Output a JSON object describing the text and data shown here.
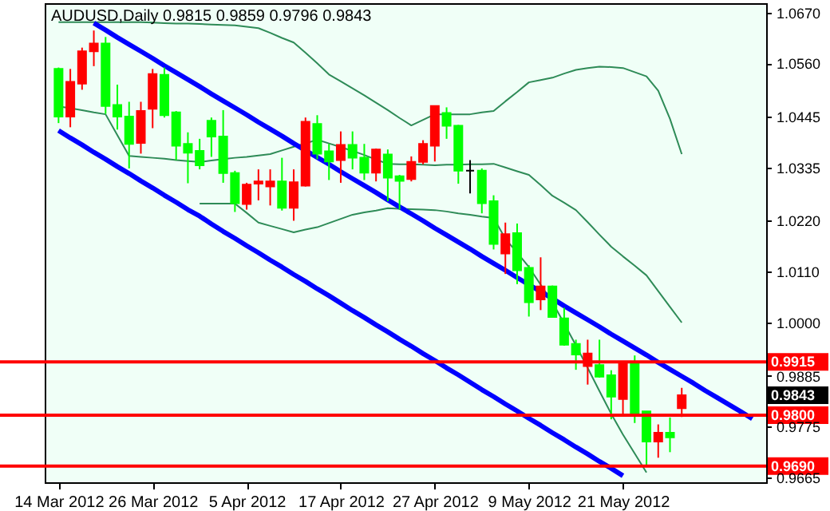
{
  "chart_data": {
    "type": "candlestick",
    "title": "AUDUSD,Daily 0.9815 0.9859 0.9796 0.9843",
    "categories": [
      "14 Mar 2012",
      null,
      null,
      null,
      null,
      null,
      null,
      null,
      "26 Mar 2012",
      null,
      null,
      null,
      null,
      null,
      null,
      null,
      "5 Apr 2012",
      null,
      null,
      null,
      null,
      null,
      null,
      null,
      "17 Apr 2012",
      null,
      null,
      null,
      null,
      null,
      null,
      null,
      "27 Apr 2012",
      null,
      null,
      null,
      null,
      null,
      null,
      null,
      "9 May 2012",
      null,
      null,
      null,
      null,
      null,
      null,
      null,
      "21 May 2012",
      null,
      null,
      null,
      null,
      null,
      null,
      null,
      null,
      null,
      null,
      null
    ],
    "ohlc": [
      [
        1.0548,
        1.0551,
        1.0431,
        1.0445
      ],
      [
        1.0445,
        1.0548,
        1.0422,
        1.052
      ],
      [
        1.0516,
        1.0594,
        1.0503,
        1.0586
      ],
      [
        1.0586,
        1.0631,
        1.0554,
        1.0603
      ],
      [
        1.0603,
        1.0617,
        1.0451,
        1.0468
      ],
      [
        1.047,
        1.0514,
        1.0417,
        1.0445
      ],
      [
        1.0445,
        1.0477,
        1.0333,
        1.0386
      ],
      [
        1.0388,
        1.0477,
        1.0365,
        1.0457
      ],
      [
        1.0462,
        1.0548,
        1.042,
        1.0537
      ],
      [
        1.0535,
        1.0551,
        1.0443,
        1.0448
      ],
      [
        1.0454,
        1.0457,
        1.0351,
        1.0382
      ],
      [
        1.0386,
        1.0411,
        1.0301,
        1.0367
      ],
      [
        1.0371,
        1.0397,
        1.0331,
        1.034
      ],
      [
        1.0436,
        1.0443,
        1.0358,
        1.0402
      ],
      [
        1.0402,
        1.0459,
        1.0302,
        1.0323
      ],
      [
        1.0323,
        1.0328,
        1.0239,
        1.0258
      ],
      [
        1.0256,
        1.0302,
        1.0244,
        1.0298
      ],
      [
        1.03,
        1.0331,
        1.0264,
        1.0305
      ],
      [
        1.0294,
        1.0331,
        1.0253,
        1.0305
      ],
      [
        1.0305,
        1.0356,
        1.0242,
        1.0248
      ],
      [
        1.0248,
        1.0331,
        1.022,
        1.0303
      ],
      [
        1.0296,
        1.0443,
        1.0294,
        1.0434
      ],
      [
        1.0429,
        1.0448,
        1.0353,
        1.0365
      ],
      [
        1.037,
        1.0386,
        1.0308,
        1.0348
      ],
      [
        1.0351,
        1.0413,
        1.0302,
        1.0384
      ],
      [
        1.0384,
        1.0413,
        1.0331,
        1.0356
      ],
      [
        1.0356,
        1.0386,
        1.0308,
        1.0324
      ],
      [
        1.0324,
        1.0376,
        1.0305,
        1.0374
      ],
      [
        1.0363,
        1.0374,
        1.0262,
        1.0313
      ],
      [
        1.0316,
        1.0319,
        1.0244,
        1.0306
      ],
      [
        1.031,
        1.0359,
        1.0305,
        1.0347
      ],
      [
        1.0347,
        1.0394,
        1.0342,
        1.0386
      ],
      [
        1.0382,
        1.0468,
        1.0348,
        1.0468
      ],
      [
        1.0453,
        1.0465,
        1.0397,
        1.0425
      ],
      [
        1.0425,
        1.0427,
        1.03,
        1.0328
      ],
      [
        1.0328,
        1.0351,
        1.0279,
        1.0328
      ],
      [
        1.0328,
        1.0333,
        1.0236,
        1.0258
      ],
      [
        1.0262,
        1.0275,
        1.0158,
        1.017
      ],
      [
        1.0149,
        1.0216,
        1.0105,
        1.0191
      ],
      [
        1.0193,
        1.0214,
        1.0083,
        1.0113
      ],
      [
        1.0118,
        1.0124,
        1.0013,
        1.0044
      ],
      [
        1.005,
        1.0141,
        1.0027,
        1.0078
      ],
      [
        1.0078,
        1.008,
        1.0012,
        1.0012
      ],
      [
        1.0009,
        1.0032,
        0.995,
        0.9952
      ],
      [
        0.9954,
        0.9963,
        0.9898,
        0.9931
      ],
      [
        0.9906,
        0.9963,
        0.9866,
        0.9933
      ],
      [
        0.9908,
        0.9963,
        0.9881,
        0.9883
      ],
      [
        0.9886,
        0.9897,
        0.9791,
        0.984
      ],
      [
        0.9835,
        0.9912,
        0.9803,
        0.9912
      ],
      [
        0.9914,
        0.9929,
        0.9783,
        0.9803
      ],
      [
        0.9808,
        0.9808,
        0.9688,
        0.9743
      ],
      [
        0.9743,
        0.978,
        0.9708,
        0.9762
      ],
      [
        0.9762,
        0.9795,
        0.972,
        0.9752
      ],
      [
        0.9815,
        0.9859,
        0.9796,
        0.9843
      ],
      null,
      null,
      null,
      null,
      null,
      null
    ],
    "colors": [
      "#00ff00",
      "#ff0000",
      "#ff0000",
      "#ff0000",
      "#00ff00",
      "#00ff00",
      "#00ff00",
      "#ff0000",
      "#ff0000",
      "#00ff00",
      "#00ff00",
      "#00ff00",
      "#00ff00",
      "#00ff00",
      "#00ff00",
      "#00ff00",
      "#ff0000",
      "#ff0000",
      "#ff0000",
      "#00ff00",
      "#ff0000",
      "#ff0000",
      "#00ff00",
      "#00ff00",
      "#ff0000",
      "#00ff00",
      "#00ff00",
      "#ff0000",
      "#00ff00",
      "#00ff00",
      "#ff0000",
      "#ff0000",
      "#ff0000",
      "#00ff00",
      "#00ff00",
      "#000000",
      "#00ff00",
      "#00ff00",
      "#ff0000",
      "#00ff00",
      "#00ff00",
      "#ff0000",
      "#00ff00",
      "#00ff00",
      "#00ff00",
      "#ff0000",
      "#00ff00",
      "#00ff00",
      "#ff0000",
      "#00ff00",
      "#00ff00",
      "#ff0000",
      "#00ff00",
      "#ff0000",
      null,
      null,
      null,
      null,
      null,
      null
    ],
    "series": [
      {
        "type": "line",
        "color": "#2e8b57",
        "values": [
          1.0649,
          1.0649,
          1.0649,
          1.0649,
          1.0649,
          1.0649,
          1.0649,
          1.0649,
          1.0648,
          1.0647,
          1.0646,
          1.0646,
          1.0645,
          1.0644,
          1.0643,
          1.0642,
          1.0639,
          1.0636,
          1.0626,
          1.0615,
          1.0605,
          1.0583,
          1.056,
          1.0536,
          1.0521,
          1.0506,
          1.0491,
          1.0475,
          1.0459,
          1.0442,
          1.0426,
          1.0438,
          1.045,
          1.045,
          1.045,
          1.045,
          1.0454,
          1.0457,
          1.0478,
          1.0498,
          1.0519,
          1.0524,
          1.0529,
          1.0538,
          1.0546,
          1.055,
          1.0553,
          1.0552,
          1.055,
          1.0541,
          1.0532,
          1.0501,
          1.044,
          1.0364,
          null,
          null,
          null,
          null,
          null,
          null
        ]
      },
      {
        "type": "line",
        "color": "#2e8b57",
        "values": [
          1.0467,
          1.0463,
          1.0459,
          1.0454,
          1.045,
          1.0405,
          1.036,
          1.0358,
          1.0356,
          1.0354,
          1.0351,
          1.0349,
          1.0347,
          1.035,
          1.0353,
          1.0356,
          1.0358,
          1.0361,
          1.0364,
          1.0372,
          1.038,
          1.0387,
          1.0395,
          1.0387,
          1.0379,
          1.0371,
          1.0362,
          1.0352,
          1.0343,
          1.0342,
          1.0342,
          1.0341,
          1.034,
          1.0341,
          1.0341,
          1.0342,
          1.0342,
          1.0343,
          1.0335,
          1.0327,
          1.0319,
          1.0297,
          1.0274,
          1.0259,
          1.0243,
          1.0217,
          1.019,
          1.0164,
          1.0143,
          1.0123,
          1.0102,
          1.0068,
          1.0034,
          1.0,
          null,
          null,
          null,
          null,
          null,
          null
        ]
      },
      {
        "type": "line",
        "color": "#2e8b57",
        "values": [
          null,
          null,
          null,
          null,
          null,
          null,
          null,
          null,
          null,
          null,
          null,
          null,
          1.0257,
          1.0257,
          1.0257,
          1.0257,
          1.0237,
          1.0216,
          1.0209,
          1.0202,
          1.0195,
          1.0201,
          1.0206,
          1.0215,
          1.0224,
          1.0233,
          1.0238,
          1.0242,
          1.0247,
          1.0246,
          1.0245,
          1.0244,
          1.0243,
          1.024,
          1.0236,
          1.0233,
          1.0229,
          1.0226,
          1.0181,
          1.0151,
          1.012,
          1.0082,
          1.0044,
          0.9998,
          0.9951,
          0.9902,
          0.9852,
          0.9803,
          0.9758,
          0.9717,
          0.9676,
          null,
          null,
          null,
          null,
          null,
          null,
          null,
          null,
          null
        ]
      },
      {
        "type": "line",
        "color": "#0000ff",
        "values": [
          null,
          null,
          null,
          1.0647,
          1.0632,
          1.0616,
          1.0601,
          1.0586,
          1.0571,
          1.0555,
          1.054,
          1.0525,
          1.051,
          1.0494,
          1.0479,
          1.0464,
          1.0449,
          1.0433,
          1.0418,
          1.0403,
          1.0387,
          1.0372,
          1.0357,
          1.0342,
          1.0326,
          1.0311,
          1.0296,
          1.0281,
          1.0265,
          1.025,
          1.0235,
          1.022,
          1.0204,
          1.0189,
          1.0174,
          1.0159,
          1.0143,
          1.0128,
          1.0113,
          1.0097,
          1.0082,
          1.0067,
          1.0052,
          1.0036,
          1.0021,
          1.0006,
          0.9991,
          0.9975,
          0.996,
          0.9945,
          0.993,
          0.9914,
          0.9899,
          0.9884,
          0.9869,
          0.9853,
          0.9838,
          0.9823,
          0.9808,
          0.9792
        ]
      },
      {
        "type": "line",
        "color": "#0000ff",
        "values": [
          1.0415,
          1.0399,
          1.0384,
          1.0368,
          1.0353,
          1.0337,
          1.0322,
          1.0306,
          1.0291,
          1.0275,
          1.026,
          1.0244,
          1.023,
          1.0213,
          1.0197,
          1.0182,
          1.0166,
          1.0151,
          1.0135,
          1.012,
          1.0104,
          1.0089,
          1.0073,
          1.0058,
          1.0042,
          1.0026,
          1.0011,
          0.9995,
          0.998,
          0.9964,
          0.9949,
          0.9933,
          0.9918,
          0.9902,
          0.9887,
          0.9871,
          0.9855,
          0.984,
          0.9824,
          0.9809,
          0.9793,
          0.9778,
          0.9762,
          0.9747,
          0.9731,
          0.9716,
          0.97,
          0.9685,
          0.9669,
          null,
          null,
          null,
          null,
          null,
          null,
          null,
          null,
          null,
          null,
          null
        ]
      }
    ],
    "ylim": [
      0.9655,
      1.069
    ],
    "yticks": [
      {
        "value": 1.067,
        "label": "1.0670"
      },
      {
        "value": 1.056,
        "label": "1.0560"
      },
      {
        "value": 1.0445,
        "label": "1.0445"
      },
      {
        "value": 1.0335,
        "label": "1.0335"
      },
      {
        "value": 1.022,
        "label": "1.0220"
      },
      {
        "value": 1.011,
        "label": "1.0110"
      },
      {
        "value": 1.0,
        "label": "1.0000"
      },
      {
        "value": 0.9885,
        "label": "0.9885"
      },
      {
        "value": 0.9775,
        "label": "0.9775"
      },
      {
        "value": 0.9665,
        "label": "0.9665"
      }
    ],
    "ref_lines": [
      {
        "axis": "y",
        "value": 0.9915,
        "label": "0.9915",
        "color": "#ff0000"
      },
      {
        "axis": "y",
        "value": 0.98,
        "label": "0.9800",
        "color": "#ff0000"
      },
      {
        "axis": "y",
        "value": 0.969,
        "label": "0.9690",
        "color": "#ff0000"
      }
    ],
    "annotations": [
      "0.9843"
    ]
  }
}
